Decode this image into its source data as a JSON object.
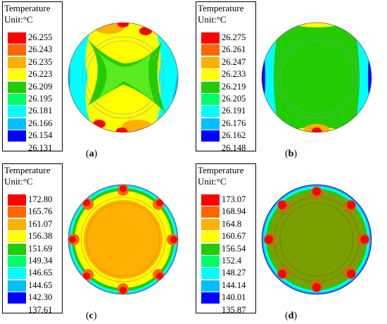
{
  "colors": {
    "scale": [
      "#ff0000",
      "#ff6600",
      "#ffb000",
      "#ffff00",
      "#22cc00",
      "#00ff66",
      "#00ffff",
      "#00bfff",
      "#0000ff",
      "#0000ee"
    ]
  },
  "panels": [
    {
      "id": "a",
      "legend_title": "Temperature",
      "legend_unit": "Unit:°C",
      "ticks": [
        "26.255",
        "26.243",
        "26.235",
        "26.223",
        "26.209",
        "26.195",
        "26.181",
        "26.166",
        "26.154",
        "26.131"
      ],
      "caption": "a"
    },
    {
      "id": "b",
      "legend_title": "Temperature",
      "legend_unit": "Unit:°C",
      "ticks": [
        "26.275",
        "26.261",
        "26.247",
        "26.233",
        "26.219",
        "26.205",
        "26.191",
        "26.176",
        "26.162",
        "26.148"
      ],
      "caption": "b"
    },
    {
      "id": "c",
      "legend_title": "Temperature",
      "legend_unit": "Unit:°C",
      "ticks": [
        "172.80",
        "165.76",
        "161.07",
        "156.38",
        "151.69",
        "149.34",
        "146.65",
        "144.65",
        "142.30",
        "137.61"
      ],
      "caption": "c"
    },
    {
      "id": "d",
      "legend_title": "Temperature",
      "legend_unit": "Unit:°C",
      "ticks": [
        "173.07",
        "168.94",
        "164.8",
        "160.67",
        "156.54",
        "152.4",
        "148.27",
        "144.14",
        "140.01",
        "135.87"
      ],
      "caption": "d"
    }
  ]
}
